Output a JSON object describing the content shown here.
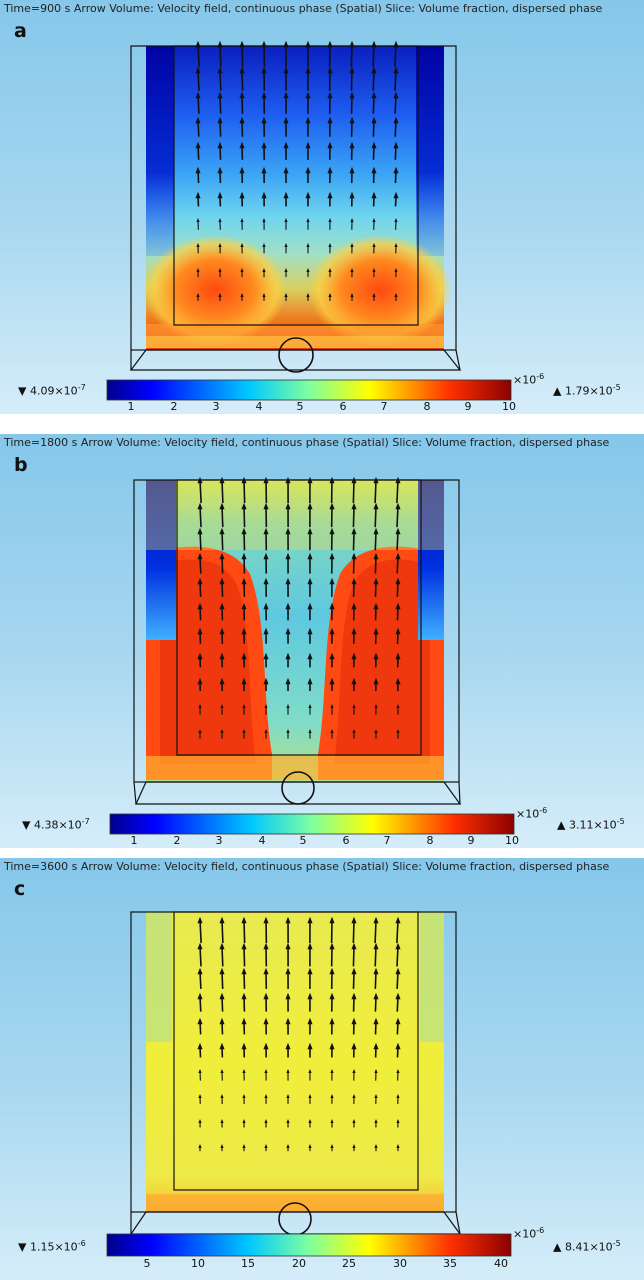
{
  "panels": [
    {
      "letter": "a",
      "header": "Time=900 s Arrow Volume: Velocity field, continuous phase (Spatial) Slice: Volume fraction, dispersed phase",
      "min_label": "4.09×10",
      "min_exp": "-7",
      "max_label": "1.79×10",
      "max_exp": "-5",
      "multiplier": "×10",
      "multiplier_exp": "-6",
      "ticks": [
        "1",
        "2",
        "3",
        "4",
        "5",
        "6",
        "7",
        "8",
        "9",
        "10"
      ]
    },
    {
      "letter": "b",
      "header": "Time=1800 s Arrow Volume: Velocity field, continuous phase (Spatial) Slice: Volume fraction, dispersed phase",
      "min_label": "4.38×10",
      "min_exp": "-7",
      "max_label": "3.11×10",
      "max_exp": "-5",
      "multiplier": "×10",
      "multiplier_exp": "-6",
      "ticks": [
        "1",
        "2",
        "3",
        "4",
        "5",
        "6",
        "7",
        "8",
        "9",
        "10"
      ]
    },
    {
      "letter": "c",
      "header": "Time=3600 s Arrow Volume: Velocity field, continuous phase (Spatial) Slice: Volume fraction, dispersed phase",
      "min_label": "1.15×10",
      "min_exp": "-6",
      "max_label": "8.41×10",
      "max_exp": "-5",
      "multiplier": "×10",
      "multiplier_exp": "-6",
      "ticks": [
        "5",
        "10",
        "15",
        "20",
        "25",
        "30",
        "35",
        "40"
      ]
    }
  ],
  "colors": {
    "jet_low": "#00008b",
    "jet_high": "#8b0000",
    "arrow": "#111111"
  }
}
